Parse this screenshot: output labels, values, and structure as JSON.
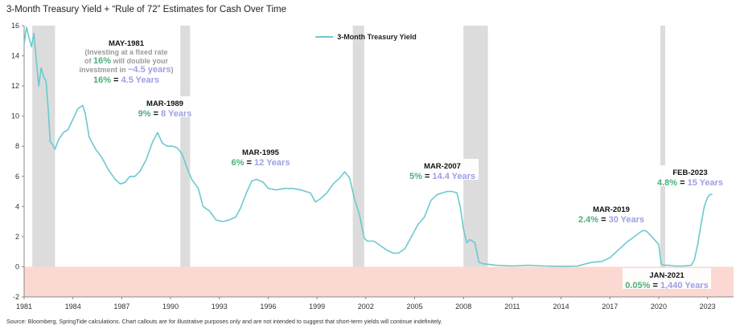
{
  "title": "3-Month Treasury Yield + “Rule of 72” Estimates for Cash Over Time",
  "footnote": "Source: Bloomberg, SpringTide calculations. Chart callouts are for illustrative purposes only and are not intended to suggest that short-term yields will continue indefinitely.",
  "colors": {
    "line": "#6cc9cf",
    "recession": "#dcdcdc",
    "negative_band": "#fbd9d2",
    "green": "#4caf7a",
    "purple": "#9e9ee6"
  },
  "chart_data": {
    "type": "line",
    "title": "3-Month Treasury Yield + “Rule of 72” Estimates for Cash Over Time",
    "xlim": [
      1981,
      2024.6
    ],
    "ylim": [
      -2,
      16
    ],
    "x_ticks": [
      "1981",
      "1984",
      "1987",
      "1990",
      "1993",
      "1996",
      "1999",
      "2002",
      "2005",
      "2008",
      "2011",
      "2014",
      "2017",
      "2020",
      "2023"
    ],
    "y_ticks": [
      "16",
      "14",
      "12",
      "10",
      "8",
      "6",
      "4",
      "2",
      "0",
      "-2"
    ],
    "legend": {
      "label": "3-Month Treasury Yield",
      "position": "top-center"
    },
    "shaded_regions": [
      {
        "name": "recession",
        "x": [
          1981.5,
          1982.9
        ]
      },
      {
        "name": "recession",
        "x": [
          1990.6,
          1991.2
        ]
      },
      {
        "name": "recession",
        "x": [
          2001.2,
          2001.9
        ]
      },
      {
        "name": "recession",
        "x": [
          2008.0,
          2009.5
        ]
      },
      {
        "name": "recession",
        "x": [
          2020.1,
          2020.4
        ]
      },
      {
        "name": "negative-yield-zone",
        "y": [
          -2,
          0
        ]
      }
    ],
    "series": [
      {
        "name": "3-Month Treasury Yield",
        "x": [
          1981.0,
          1981.15,
          1981.3,
          1981.45,
          1981.6,
          1981.75,
          1981.9,
          1982.05,
          1982.2,
          1982.35,
          1982.5,
          1982.6,
          1982.75,
          1982.9,
          1983.1,
          1983.4,
          1983.7,
          1984.0,
          1984.3,
          1984.6,
          1984.75,
          1985.0,
          1985.4,
          1985.8,
          1986.2,
          1986.6,
          1986.9,
          1987.2,
          1987.5,
          1987.8,
          1988.1,
          1988.5,
          1988.9,
          1989.2,
          1989.5,
          1989.8,
          1990.1,
          1990.4,
          1990.7,
          1991.0,
          1991.3,
          1991.7,
          1992.0,
          1992.4,
          1992.8,
          1993.2,
          1993.6,
          1994.0,
          1994.3,
          1994.7,
          1995.0,
          1995.3,
          1995.7,
          1996.0,
          1996.5,
          1997.0,
          1997.5,
          1998.0,
          1998.6,
          1998.9,
          1999.2,
          1999.6,
          2000.0,
          2000.4,
          2000.7,
          2001.0,
          2001.3,
          2001.6,
          2001.9,
          2002.1,
          2002.5,
          2002.9,
          2003.3,
          2003.7,
          2004.0,
          2004.4,
          2004.8,
          2005.2,
          2005.6,
          2006.0,
          2006.4,
          2006.7,
          2007.0,
          2007.3,
          2007.6,
          2007.8,
          2008.0,
          2008.2,
          2008.4,
          2008.7,
          2008.95,
          2009.2,
          2009.6,
          2010.0,
          2011.0,
          2012.0,
          2013.0,
          2014.0,
          2015.0,
          2015.9,
          2016.5,
          2017.0,
          2017.5,
          2018.0,
          2018.5,
          2019.0,
          2019.2,
          2019.5,
          2019.9,
          2020.0,
          2020.15,
          2020.3,
          2020.6,
          2021.0,
          2021.5,
          2022.0,
          2022.2,
          2022.4,
          2022.6,
          2022.8,
          2023.0,
          2023.15,
          2023.3
        ],
        "values": [
          14.8,
          15.9,
          15.2,
          14.6,
          15.5,
          13.7,
          12.0,
          13.2,
          12.6,
          12.3,
          10.2,
          8.3,
          8.1,
          7.8,
          8.4,
          8.9,
          9.1,
          9.8,
          10.5,
          10.7,
          10.2,
          8.6,
          7.8,
          7.2,
          6.4,
          5.8,
          5.5,
          5.6,
          6.0,
          6.0,
          6.3,
          7.1,
          8.3,
          8.9,
          8.2,
          8.0,
          8.0,
          7.9,
          7.5,
          6.6,
          5.8,
          5.2,
          4.0,
          3.7,
          3.1,
          3.0,
          3.1,
          3.3,
          3.9,
          5.0,
          5.7,
          5.8,
          5.6,
          5.2,
          5.1,
          5.2,
          5.2,
          5.1,
          4.9,
          4.3,
          4.5,
          4.9,
          5.5,
          5.9,
          6.3,
          5.9,
          4.5,
          3.5,
          1.9,
          1.7,
          1.7,
          1.4,
          1.1,
          0.9,
          0.9,
          1.2,
          2.0,
          2.8,
          3.3,
          4.4,
          4.8,
          4.9,
          5.0,
          5.0,
          4.9,
          4.0,
          2.5,
          1.6,
          1.8,
          1.6,
          0.3,
          0.2,
          0.15,
          0.1,
          0.05,
          0.1,
          0.05,
          0.03,
          0.05,
          0.3,
          0.35,
          0.6,
          1.1,
          1.6,
          2.0,
          2.4,
          2.4,
          2.1,
          1.6,
          1.5,
          0.2,
          0.1,
          0.1,
          0.05,
          0.05,
          0.1,
          0.5,
          1.5,
          2.8,
          4.0,
          4.6,
          4.8,
          4.8
        ]
      }
    ],
    "annotations": [
      {
        "anchor_year": 1981.0,
        "head": "MAY-1981",
        "note_lines": [
          {
            "a": "(Investing at a fixed rate",
            "b": "",
            "c": ""
          },
          {
            "a": "of ",
            "b": "16%",
            "c": " will double your"
          },
          {
            "a": "investment in ",
            "b": "~4.5 years",
            "c": ")"
          }
        ],
        "rate": "16%",
        "eq": " = ",
        "years": "4.5 Years"
      },
      {
        "anchor_year": 1989.0,
        "head": "MAR-1989",
        "rate": "9%",
        "eq": " = ",
        "years": "8 Years"
      },
      {
        "anchor_year": 1995.0,
        "head": "MAR-1995",
        "rate": "6%",
        "eq": " = ",
        "years": "12 Years"
      },
      {
        "anchor_year": 2007.0,
        "head": "MAR-2007",
        "rate": "5%",
        "eq": " = ",
        "years": "14.4 Years"
      },
      {
        "anchor_year": 2019.0,
        "head": "MAR-2019",
        "rate": "2.4%",
        "eq": " = ",
        "years": "30 Years"
      },
      {
        "anchor_year": 2023.0,
        "head": "FEB-2023",
        "rate": "4.8%",
        "eq": " = ",
        "years": "15 Years"
      },
      {
        "anchor_year": 2021.0,
        "head": "JAN-2021",
        "rate": "0.05%",
        "eq": " = ",
        "years": "1,440 Years"
      }
    ]
  }
}
